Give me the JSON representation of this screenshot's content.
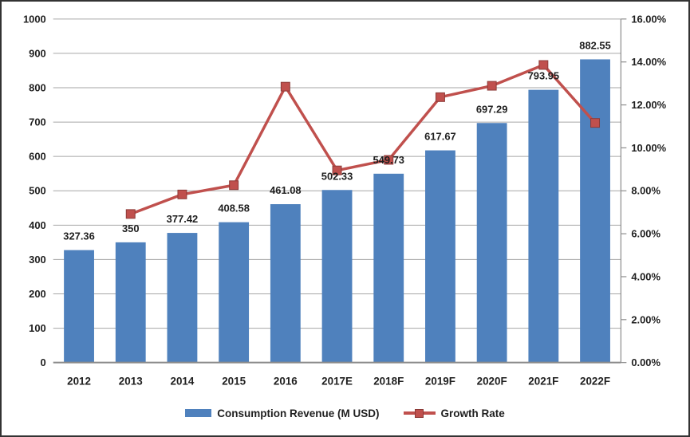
{
  "colors": {
    "bar": "#4F81BD",
    "line": "#C0504D",
    "marker_border": "#8C3A37",
    "gridline": "#A6A6A6",
    "axis_line": "#8C8C8C",
    "text": "#1F1F1F",
    "background": "#FFFFFF",
    "frame_border": "#333333"
  },
  "legend": {
    "items": [
      {
        "label": "Consumption Revenue (M USD)",
        "swatch": "bar-swatch",
        "color": "#4F81BD"
      },
      {
        "label": "Growth Rate",
        "swatch": "line-marker-swatch",
        "color": "#C0504D"
      }
    ]
  },
  "chart_data": {
    "type": "combo-bar-line",
    "categories": [
      "2012",
      "2013",
      "2014",
      "2015",
      "2016",
      "2017E",
      "2018F",
      "2019F",
      "2020F",
      "2021F",
      "2022F"
    ],
    "series": [
      {
        "name": "Consumption Revenue (M USD)",
        "type": "bar",
        "axis": "left",
        "color": "#4F81BD",
        "values": [
          327.36,
          350,
          377.42,
          408.58,
          461.08,
          502.33,
          549.73,
          617.67,
          697.29,
          793.95,
          882.55
        ],
        "data_labels": [
          "327.36",
          "350",
          "377.42",
          "408.58",
          "461.08",
          "502.33",
          "549.73",
          "617.67",
          "697.29",
          "793.95",
          "882.55"
        ]
      },
      {
        "name": "Growth Rate",
        "type": "line",
        "axis": "right",
        "color": "#C0504D",
        "values": [
          null,
          6.92,
          7.83,
          8.26,
          12.85,
          8.95,
          9.44,
          12.36,
          12.89,
          13.86,
          11.16
        ]
      }
    ],
    "left_axis": {
      "min": 0,
      "max": 1000,
      "step": 100,
      "tick_labels": [
        "0",
        "100",
        "200",
        "300",
        "400",
        "500",
        "600",
        "700",
        "800",
        "900",
        "1000"
      ]
    },
    "right_axis": {
      "min": 0,
      "max": 16,
      "step": 2,
      "tick_labels": [
        "0.00%",
        "2.00%",
        "4.00%",
        "6.00%",
        "8.00%",
        "10.00%",
        "12.00%",
        "14.00%",
        "16.00%"
      ]
    },
    "grid": true,
    "legend_position": "bottom"
  }
}
